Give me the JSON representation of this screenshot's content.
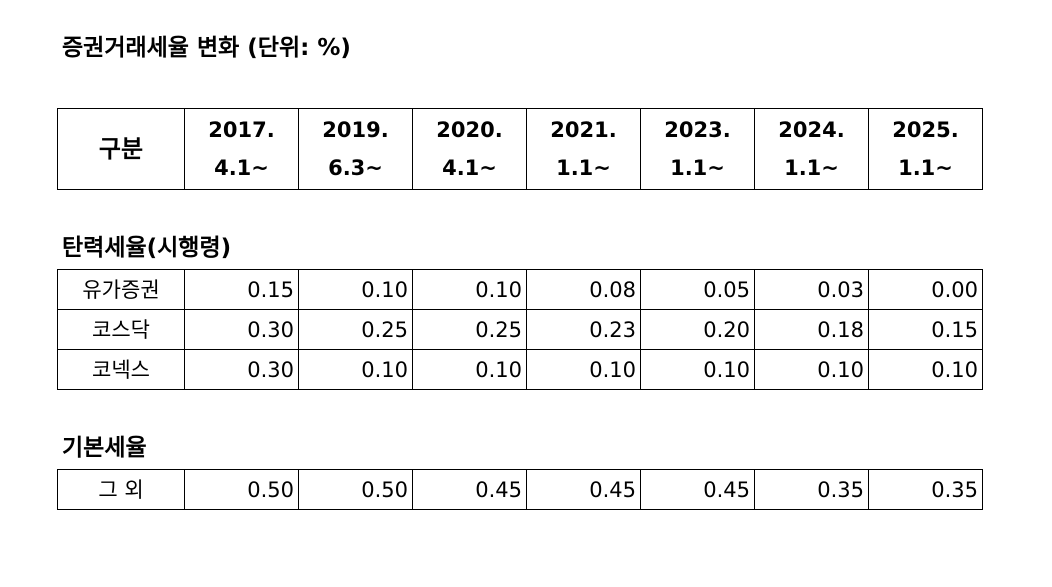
{
  "title": "증권거래세율 변화 (단위: %)",
  "header": {
    "label": "구분",
    "periods": [
      {
        "year": "2017.",
        "date": "4.1~"
      },
      {
        "year": "2019.",
        "date": "6.3~"
      },
      {
        "year": "2020.",
        "date": "4.1~"
      },
      {
        "year": "2021.",
        "date": "1.1~"
      },
      {
        "year": "2023.",
        "date": "1.1~"
      },
      {
        "year": "2024.",
        "date": "1.1~"
      },
      {
        "year": "2025.",
        "date": "1.1~"
      }
    ]
  },
  "flexible_rate": {
    "label": "탄력세율(시행령)",
    "rows": [
      {
        "name": "유가증권",
        "values": [
          "0.15",
          "0.10",
          "0.10",
          "0.08",
          "0.05",
          "0.03",
          "0.00"
        ]
      },
      {
        "name": "코스닥",
        "values": [
          "0.30",
          "0.25",
          "0.25",
          "0.23",
          "0.20",
          "0.18",
          "0.15"
        ]
      },
      {
        "name": "코넥스",
        "values": [
          "0.30",
          "0.10",
          "0.10",
          "0.10",
          "0.10",
          "0.10",
          "0.10"
        ]
      }
    ]
  },
  "basic_rate": {
    "label": "기본세율",
    "rows": [
      {
        "name": "그 외",
        "values": [
          "0.50",
          "0.50",
          "0.45",
          "0.45",
          "0.45",
          "0.35",
          "0.35"
        ]
      }
    ]
  }
}
